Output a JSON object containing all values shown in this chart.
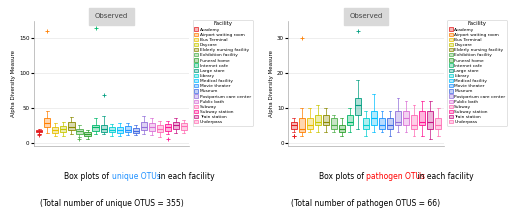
{
  "facilities": [
    "Academy",
    "Airport waiting room",
    "Bus Terminal",
    "Daycare",
    "Elderly nursing facility",
    "Exhibition facility",
    "Funeral home",
    "Internet cafe",
    "Large store",
    "Library",
    "Medical facility",
    "Movie theater",
    "Museum",
    "Postpartum care center",
    "Public bath",
    "Subway",
    "Subway station",
    "Train station",
    "Underpass"
  ],
  "colors": [
    "#e41a1c",
    "#ff7f00",
    "#e6c000",
    "#c8c800",
    "#8b8b00",
    "#4daf4a",
    "#2ca02c",
    "#00b86b",
    "#009e80",
    "#00ced1",
    "#00bfff",
    "#1e90ff",
    "#4169e1",
    "#9370db",
    "#da70d6",
    "#ff69b4",
    "#ff1493",
    "#c71585",
    "#ff6eb4"
  ],
  "unique_data": {
    "Academy": {
      "q1": 15,
      "med": 17,
      "q3": 19,
      "whislo": 13,
      "whishi": 20,
      "fliers": [
        12,
        11
      ]
    },
    "Airport waiting room": {
      "q1": 22,
      "med": 28,
      "q3": 35,
      "whislo": 14,
      "whishi": 46,
      "fliers": [
        160
      ]
    },
    "Bus Terminal": {
      "q1": 14,
      "med": 18,
      "q3": 22,
      "whislo": 10,
      "whishi": 28,
      "fliers": []
    },
    "Daycare": {
      "q1": 16,
      "med": 20,
      "q3": 24,
      "whislo": 10,
      "whishi": 30,
      "fliers": []
    },
    "Elderly nursing facility": {
      "q1": 18,
      "med": 23,
      "q3": 30,
      "whislo": 12,
      "whishi": 37,
      "fliers": []
    },
    "Exhibition facility": {
      "q1": 13,
      "med": 17,
      "q3": 20,
      "whislo": 8,
      "whishi": 26,
      "fliers": [
        5
      ]
    },
    "Funeral home": {
      "q1": 10,
      "med": 13,
      "q3": 15,
      "whislo": 6,
      "whishi": 18,
      "fliers": []
    },
    "Internet cafe": {
      "q1": 17,
      "med": 22,
      "q3": 26,
      "whislo": 13,
      "whishi": 35,
      "fliers": [
        165
      ]
    },
    "Large store": {
      "q1": 16,
      "med": 20,
      "q3": 26,
      "whislo": 12,
      "whishi": 38,
      "fliers": [
        69
      ]
    },
    "Library": {
      "q1": 15,
      "med": 18,
      "q3": 22,
      "whislo": 10,
      "whishi": 27,
      "fliers": []
    },
    "Medical facility": {
      "q1": 14,
      "med": 18,
      "q3": 23,
      "whislo": 10,
      "whishi": 28,
      "fliers": []
    },
    "Movie theater": {
      "q1": 16,
      "med": 19,
      "q3": 24,
      "whislo": 11,
      "whishi": 29,
      "fliers": []
    },
    "Museum": {
      "q1": 14,
      "med": 17,
      "q3": 21,
      "whislo": 11,
      "whishi": 26,
      "fliers": []
    },
    "Postpartum care center": {
      "q1": 18,
      "med": 23,
      "q3": 30,
      "whislo": 12,
      "whishi": 38,
      "fliers": []
    },
    "Public bath": {
      "q1": 17,
      "med": 22,
      "q3": 28,
      "whislo": 11,
      "whishi": 35,
      "fliers": []
    },
    "Subway": {
      "q1": 15,
      "med": 20,
      "q3": 26,
      "whislo": 9,
      "whishi": 32,
      "fliers": []
    },
    "Subway station": {
      "q1": 17,
      "med": 22,
      "q3": 27,
      "whislo": 12,
      "whishi": 32,
      "fliers": [
        5
      ]
    },
    "Train station": {
      "q1": 20,
      "med": 25,
      "q3": 30,
      "whislo": 14,
      "whishi": 36,
      "fliers": []
    },
    "Underpass": {
      "q1": 19,
      "med": 24,
      "q3": 28,
      "whislo": 14,
      "whishi": 33,
      "fliers": []
    }
  },
  "pathogen_data": {
    "Academy": {
      "q1": 4,
      "med": 5,
      "q3": 6,
      "whislo": 3,
      "whishi": 7,
      "fliers": [
        2,
        2
      ]
    },
    "Airport waiting room": {
      "q1": 3,
      "med": 4,
      "q3": 7,
      "whislo": 2,
      "whishi": 10,
      "fliers": [
        30
      ]
    },
    "Bus Terminal": {
      "q1": 4,
      "med": 5,
      "q3": 7,
      "whislo": 3,
      "whishi": 10,
      "fliers": []
    },
    "Daycare": {
      "q1": 5,
      "med": 6,
      "q3": 8,
      "whislo": 3,
      "whishi": 11,
      "fliers": []
    },
    "Elderly nursing facility": {
      "q1": 5,
      "med": 6,
      "q3": 8,
      "whislo": 3,
      "whishi": 10,
      "fliers": []
    },
    "Exhibition facility": {
      "q1": 4,
      "med": 5,
      "q3": 7,
      "whislo": 3,
      "whishi": 8,
      "fliers": []
    },
    "Funeral home": {
      "q1": 3,
      "med": 4,
      "q3": 5,
      "whislo": 2,
      "whishi": 7,
      "fliers": []
    },
    "Internet cafe": {
      "q1": 5,
      "med": 6,
      "q3": 8,
      "whislo": 3,
      "whishi": 10,
      "fliers": []
    },
    "Large store": {
      "q1": 8,
      "med": 11,
      "q3": 13,
      "whislo": 4,
      "whishi": 18,
      "fliers": [
        32
      ]
    },
    "Library": {
      "q1": 4,
      "med": 5,
      "q3": 7,
      "whislo": 2,
      "whishi": 9,
      "fliers": []
    },
    "Medical facility": {
      "q1": 5,
      "med": 7,
      "q3": 9,
      "whislo": 3,
      "whishi": 14,
      "fliers": []
    },
    "Movie theater": {
      "q1": 4,
      "med": 5,
      "q3": 7,
      "whislo": 3,
      "whishi": 9,
      "fliers": []
    },
    "Museum": {
      "q1": 4,
      "med": 5,
      "q3": 7,
      "whislo": 2,
      "whishi": 9,
      "fliers": []
    },
    "Postpartum care center": {
      "q1": 5,
      "med": 6,
      "q3": 9,
      "whislo": 3,
      "whishi": 13,
      "fliers": []
    },
    "Public bath": {
      "q1": 5,
      "med": 7,
      "q3": 9,
      "whislo": 3,
      "whishi": 12,
      "fliers": []
    },
    "Subway": {
      "q1": 4,
      "med": 5,
      "q3": 8,
      "whislo": 2,
      "whishi": 11,
      "fliers": []
    },
    "Subway station": {
      "q1": 5,
      "med": 6,
      "q3": 9,
      "whislo": 2,
      "whishi": 12,
      "fliers": []
    },
    "Train station": {
      "q1": 4,
      "med": 6,
      "q3": 9,
      "whislo": 1,
      "whishi": 12,
      "fliers": []
    },
    "Underpass": {
      "q1": 4,
      "med": 5,
      "q3": 7,
      "whislo": 2,
      "whishi": 10,
      "fliers": []
    }
  },
  "panel_title": "Observed",
  "ylabel": "Alpha Diversity Measure",
  "unique_color": "#1e90ff",
  "pathogen_color": "#ff0000",
  "unique_subtitle3": "(Total number of unique OTUS = 355)",
  "pathogen_subtitle3": "(Total number of pathogen OTUS = 66)",
  "grid_color": "#e8e8e8",
  "title_bg": "#d9d9d9",
  "legend_title": "Facility"
}
